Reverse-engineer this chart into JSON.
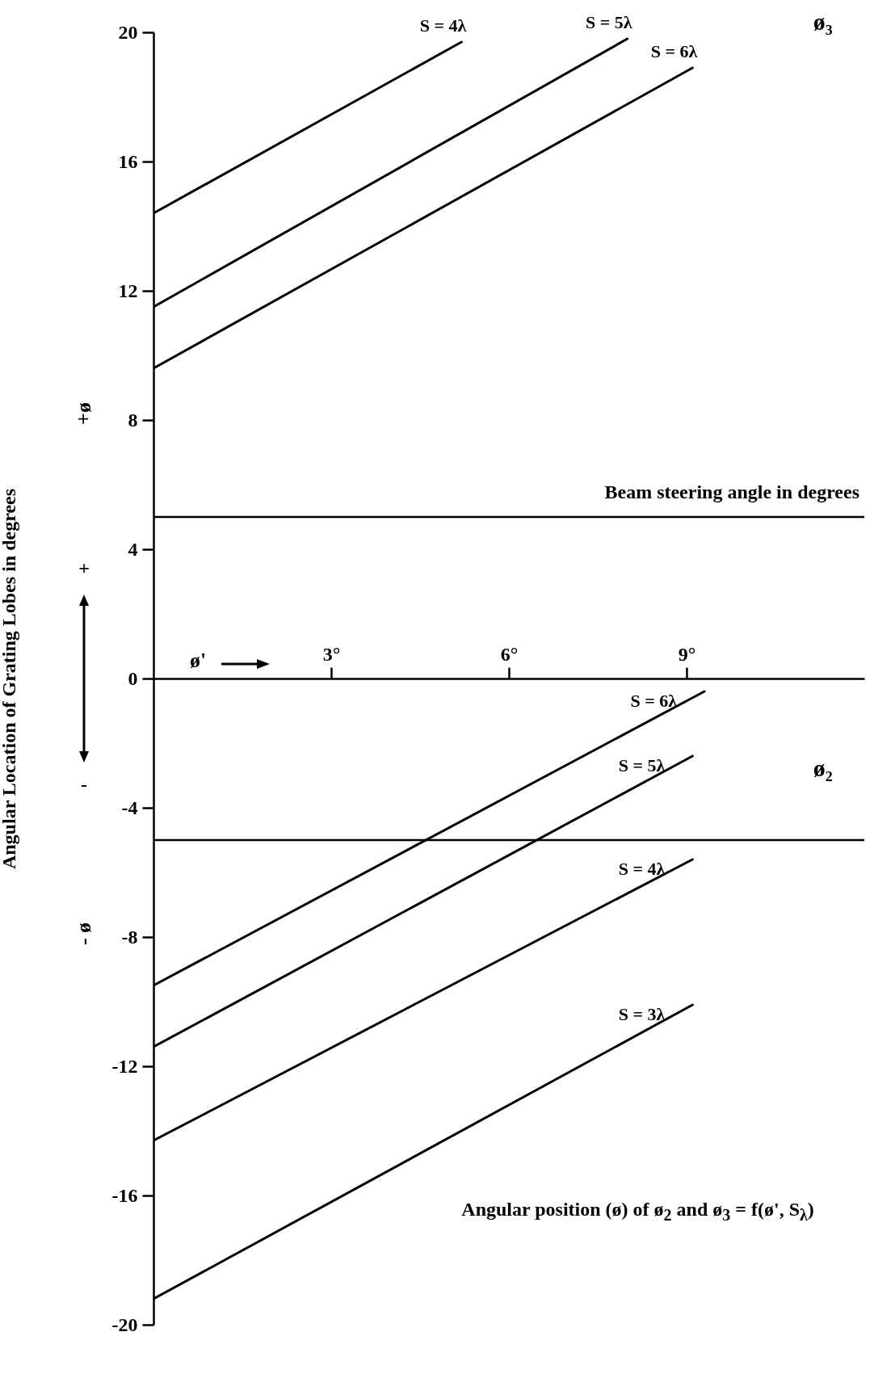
{
  "chart_data": {
    "type": "line",
    "ylabel": "Angular Location of Grating Lobes in degrees",
    "xlim": [
      0,
      12
    ],
    "xticks": [
      {
        "value": 3,
        "label": "3°"
      },
      {
        "value": 6,
        "label": "6°"
      },
      {
        "value": 9,
        "label": "9°"
      }
    ],
    "ylim": [
      -20,
      20
    ],
    "yticks": [
      -20,
      -16,
      -12,
      -8,
      -4,
      0,
      4,
      8,
      12,
      16,
      20
    ],
    "series": [
      {
        "name": "S = 4λ",
        "color": "#000000",
        "x": [
          0,
          5.2
        ],
        "values": [
          14.4,
          19.7
        ]
      },
      {
        "name": "S = 5λ",
        "color": "#000000",
        "x": [
          0,
          8.0
        ],
        "values": [
          11.5,
          19.8
        ]
      },
      {
        "name": "S = 6λ",
        "color": "#000000",
        "x": [
          0,
          9.1
        ],
        "values": [
          9.6,
          18.9
        ]
      },
      {
        "name": "S = 6λ",
        "color": "#000000",
        "x": [
          0,
          9.3
        ],
        "values": [
          -9.5,
          -0.4
        ]
      },
      {
        "name": "S = 5λ",
        "color": "#000000",
        "x": [
          0,
          9.1
        ],
        "values": [
          -11.4,
          -2.4
        ]
      },
      {
        "name": "S = 4λ",
        "color": "#000000",
        "x": [
          0,
          9.1
        ],
        "values": [
          -14.3,
          -5.6
        ]
      },
      {
        "name": "S = 3λ",
        "color": "#000000",
        "x": [
          0,
          9.1
        ],
        "values": [
          -19.2,
          -10.1
        ]
      }
    ],
    "ref_lines": [
      {
        "axis": "y",
        "value": 5,
        "label": "Beam steering angle in degrees",
        "color": "#000000"
      },
      {
        "axis": "y",
        "value": -5,
        "color": "#000000"
      }
    ],
    "annotations": [
      "ø₃",
      "ø₂",
      "Angular position (ø) of ø$_{2}$ and ø$_{3}$ = f(ø', S$_{λ}$)",
      "+ø",
      "- ø",
      "+",
      "-",
      "ø'"
    ]
  }
}
